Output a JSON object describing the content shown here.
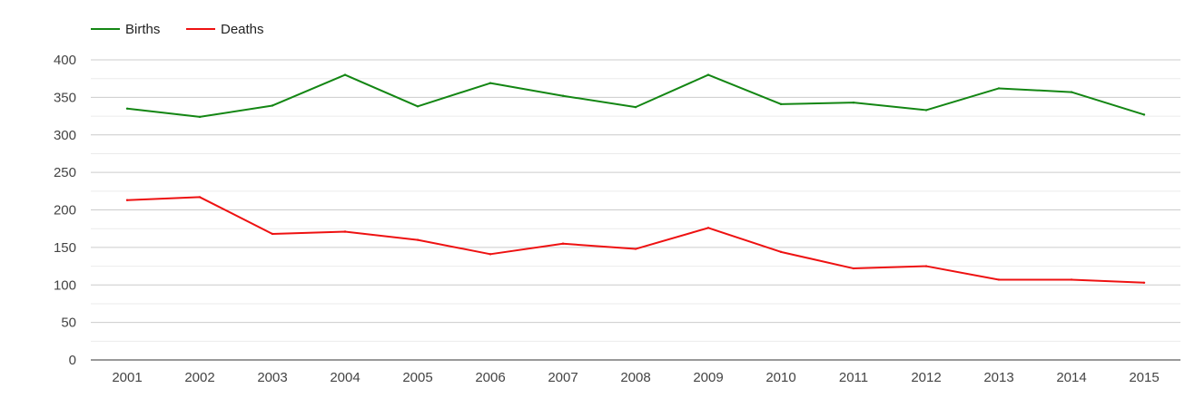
{
  "chart_data": {
    "type": "line",
    "categories": [
      "2001",
      "2002",
      "2003",
      "2004",
      "2005",
      "2006",
      "2007",
      "2008",
      "2009",
      "2010",
      "2011",
      "2012",
      "2013",
      "2014",
      "2015"
    ],
    "series": [
      {
        "name": "Births",
        "color": "#138613",
        "values": [
          335,
          324,
          339,
          380,
          338,
          369,
          352,
          337,
          380,
          341,
          343,
          333,
          362,
          357,
          327
        ]
      },
      {
        "name": "Deaths",
        "color": "#ee1111",
        "values": [
          213,
          217,
          168,
          171,
          160,
          141,
          155,
          148,
          176,
          144,
          122,
          125,
          107,
          107,
          103
        ]
      }
    ],
    "ylim": [
      0,
      400
    ],
    "yticks": [
      0,
      50,
      100,
      150,
      200,
      250,
      300,
      350,
      400
    ],
    "minor_grid": true,
    "legend_position": "top-left",
    "title": "",
    "xlabel": "",
    "ylabel": ""
  }
}
